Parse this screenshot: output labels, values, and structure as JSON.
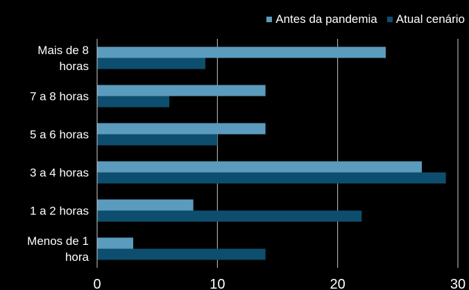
{
  "chart_data": {
    "type": "bar",
    "orientation": "horizontal",
    "categories": [
      [
        "Mais de 8",
        "horas"
      ],
      [
        "7 a 8 horas"
      ],
      [
        "5 a 6 horas"
      ],
      [
        "3 a 4 horas"
      ],
      [
        "1 a 2 horas"
      ],
      [
        "Menos de 1",
        "hora"
      ]
    ],
    "series": [
      {
        "name": "Antes da pandemia",
        "color": "#5b9bbd",
        "values": [
          24,
          14,
          14,
          27,
          8,
          3
        ]
      },
      {
        "name": "Atual cenário",
        "color": "#0d4e6e",
        "values": [
          9,
          6,
          10,
          29,
          22,
          14
        ]
      }
    ],
    "xlim": [
      0,
      30
    ],
    "xticks": [
      "0",
      "10",
      "20",
      "30"
    ],
    "grid": true,
    "legend_position": "top-right"
  }
}
